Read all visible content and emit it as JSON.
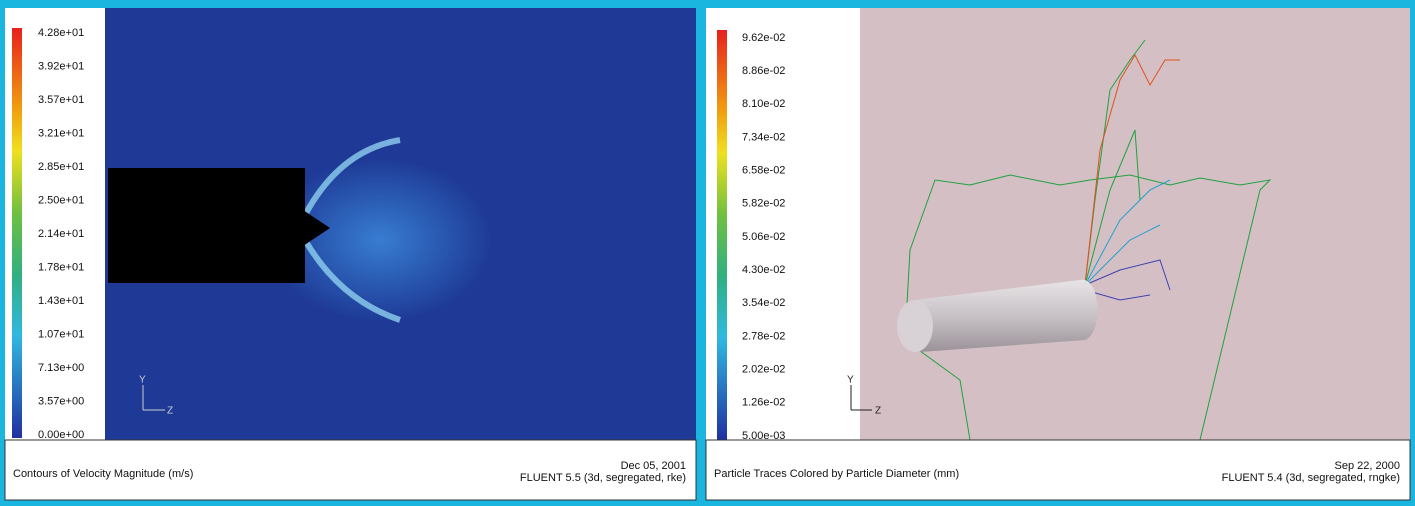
{
  "panels": [
    {
      "legend": [
        "4.28e+01",
        "3.92e+01",
        "3.57e+01",
        "3.21e+01",
        "2.85e+01",
        "2.50e+01",
        "2.14e+01",
        "1.78e+01",
        "1.43e+01",
        "1.07e+01",
        "7.13e+00",
        "3.57e+00",
        "0.00e+00"
      ],
      "axes": [
        "Y",
        "Z"
      ],
      "caption": "Contours of Velocity Magnitude (m/s)",
      "date": "Dec 05, 2001",
      "version": "FLUENT 5.5 (3d, segregated, rke)"
    },
    {
      "legend": [
        "9.62e-02",
        "8.86e-02",
        "8.10e-02",
        "7.34e-02",
        "6.58e-02",
        "5.82e-02",
        "5.06e-02",
        "4.30e-02",
        "3.54e-02",
        "2.78e-02",
        "2.02e-02",
        "1.26e-02",
        "5.00e-03"
      ],
      "axes": [
        "Y",
        "Z"
      ],
      "caption": "Particle Traces Colored by Particle Diameter (mm)",
      "date": "Sep 22, 2000",
      "version": "FLUENT 5.4 (3d, segregated, rngke)"
    }
  ]
}
